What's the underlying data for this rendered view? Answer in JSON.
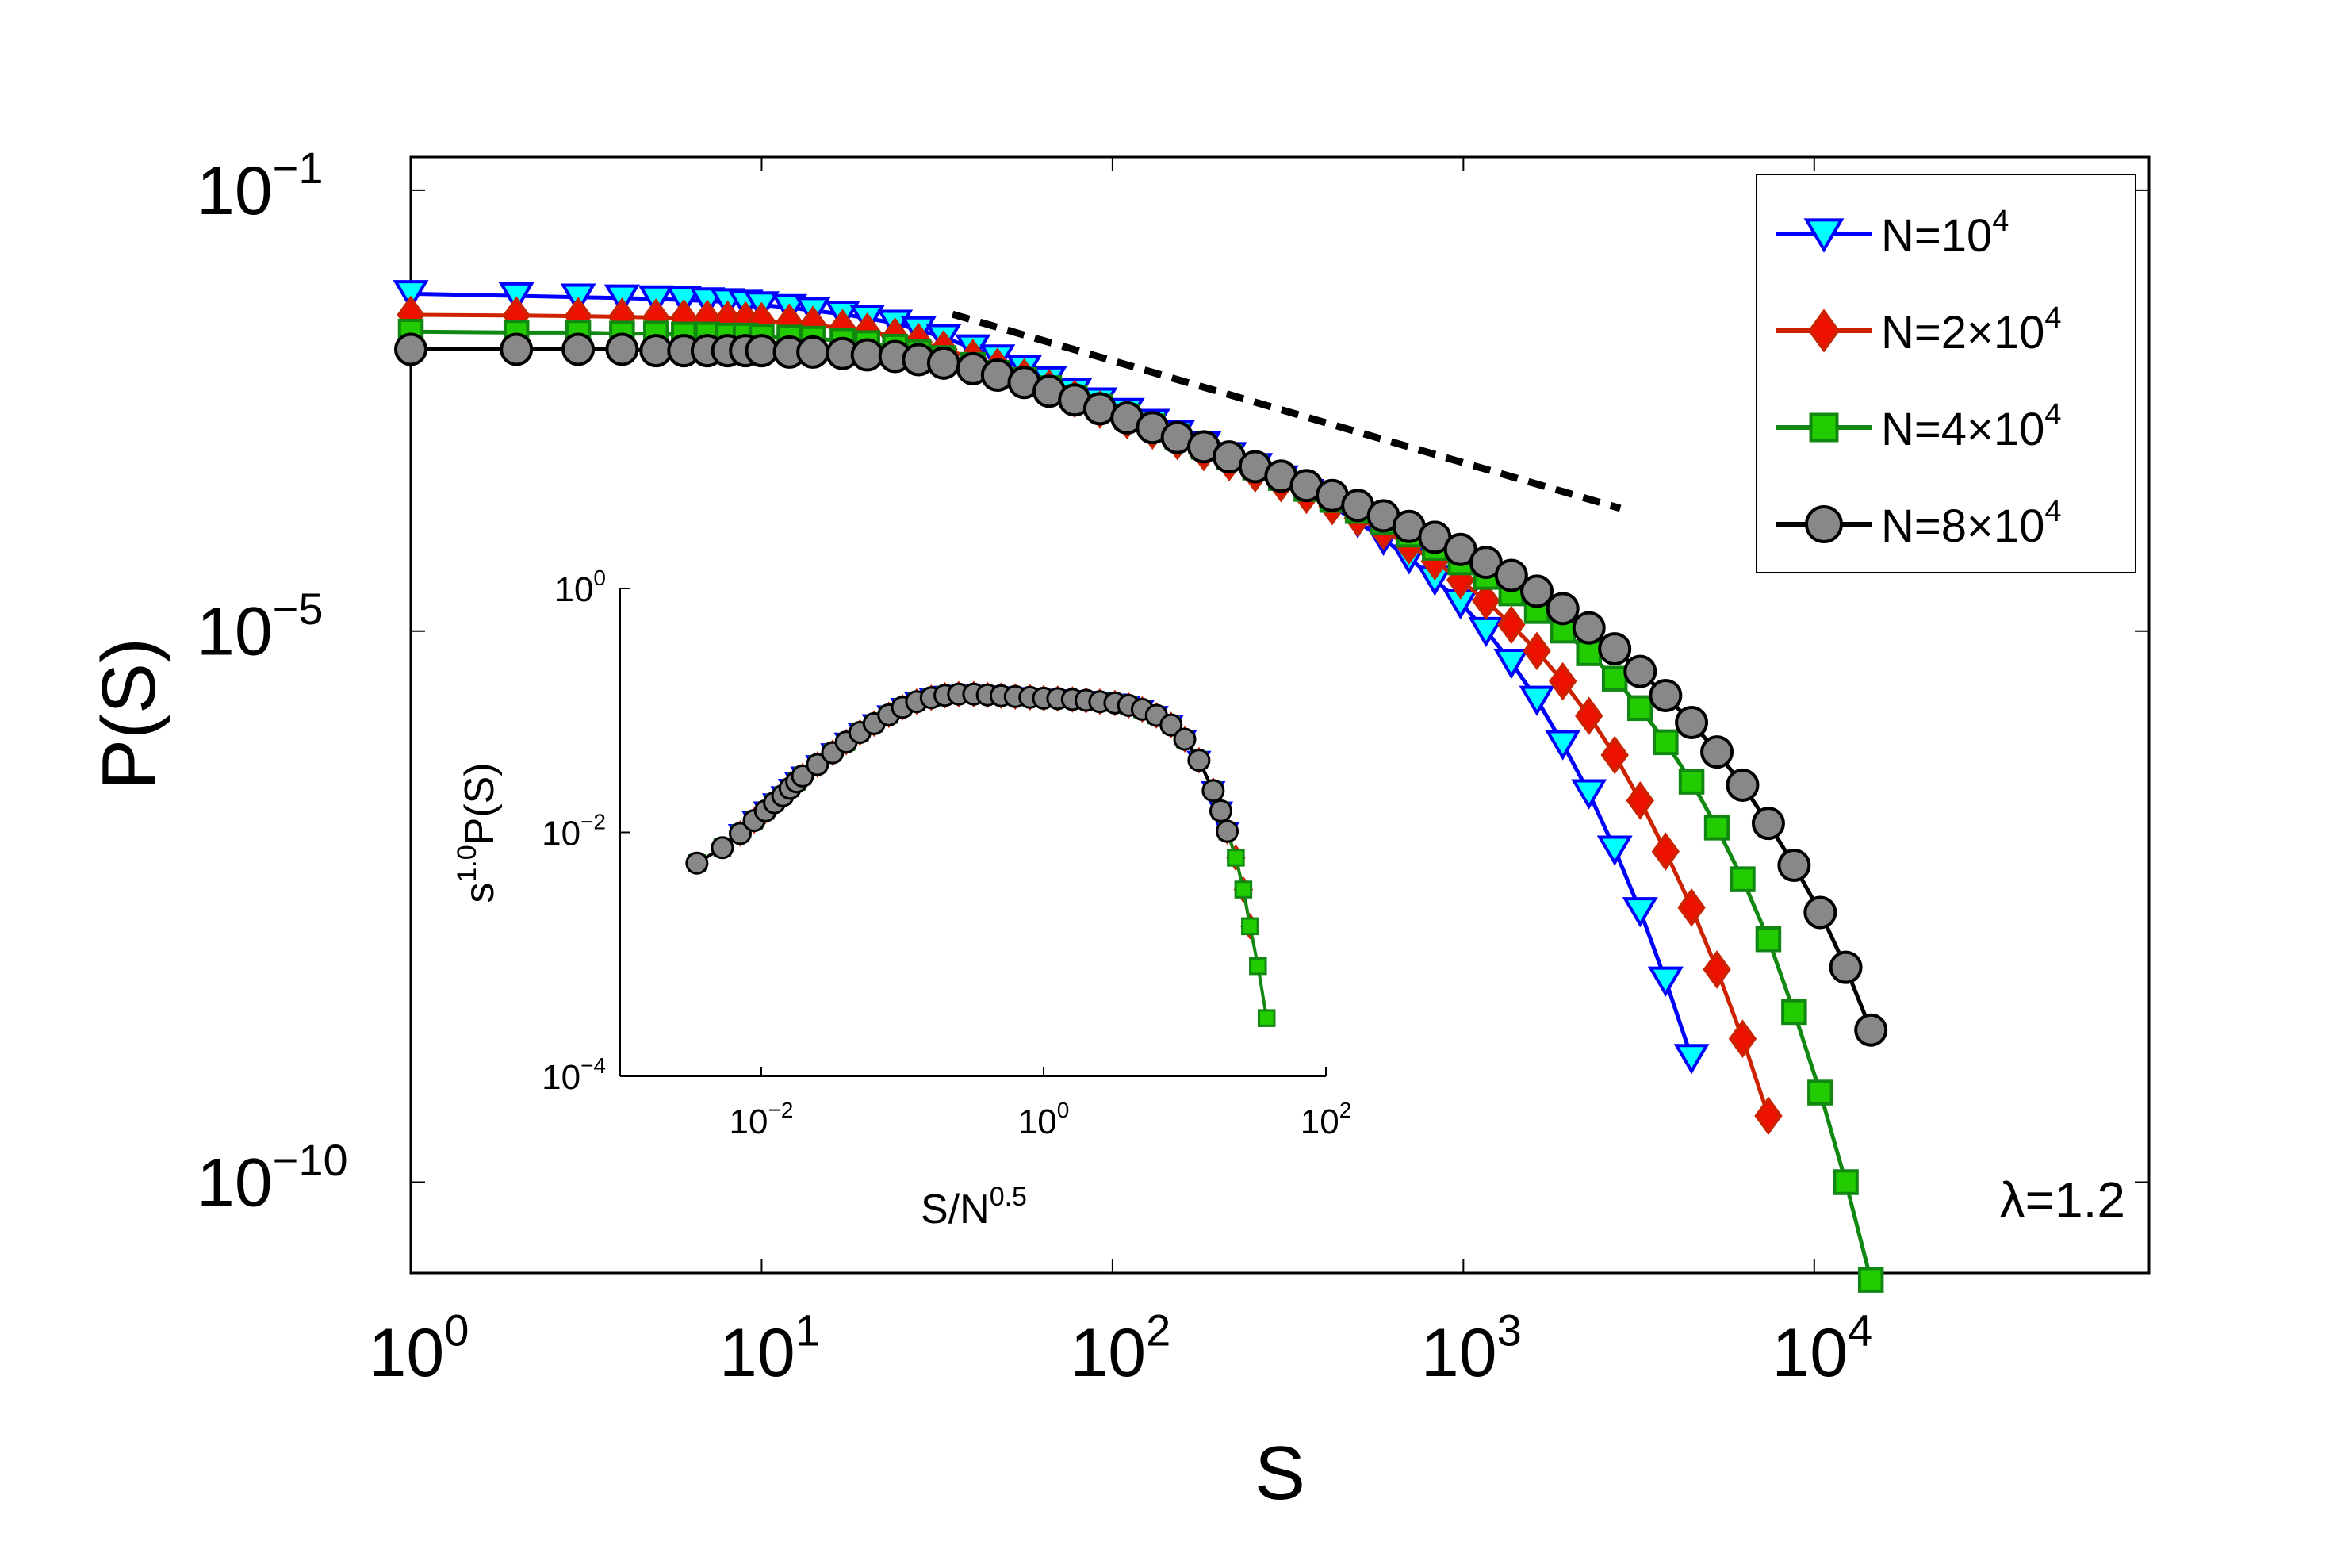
{
  "chart_data": {
    "type": "line",
    "xlabel": "S",
    "ylabel": "P(S)",
    "xscale": "log",
    "yscale": "log",
    "xlim": [
      1,
      90000
    ],
    "ylim": [
      1.5e-11,
      0.2
    ],
    "x_ticks": [
      {
        "value": 1,
        "base": "10",
        "exp": "0"
      },
      {
        "value": 10,
        "base": "10",
        "exp": "1"
      },
      {
        "value": 100,
        "base": "10",
        "exp": "2"
      },
      {
        "value": 1000,
        "base": "10",
        "exp": "3"
      },
      {
        "value": 10000,
        "base": "10",
        "exp": "4"
      }
    ],
    "y_ticks": [
      {
        "value": 0.1,
        "base": "10",
        "exp": "−1"
      },
      {
        "value": 1e-05,
        "base": "10",
        "exp": "−5"
      },
      {
        "value": 1e-10,
        "base": "10",
        "exp": "−10"
      }
    ],
    "annotation": "λ=1.2",
    "legend_location": "top-right",
    "reference_line": {
      "style": "dashed",
      "color": "#000000",
      "x": [
        35,
        2800
      ],
      "y": [
        0.0075,
        0.00013
      ]
    },
    "series": [
      {
        "name": "N=10^4",
        "label_prefix": "N=",
        "label_base": "10",
        "label_exp": "4",
        "marker": "triangle-down",
        "line_color": "#0000ff",
        "fill_color": "#00ffff",
        "x": [
          1,
          2,
          3,
          4,
          5,
          6,
          7,
          8,
          9,
          10,
          12,
          14,
          17,
          20,
          24,
          28,
          33,
          40,
          47,
          56,
          66,
          78,
          92,
          110,
          130,
          153,
          182,
          215,
          255,
          302,
          357,
          423,
          500,
          592,
          700,
          829,
          981,
          1160,
          1370,
          1620,
          1920,
          2280,
          2700,
          3190,
          3770,
          4470
        ],
        "y": [
          0.0115,
          0.011,
          0.0107,
          0.0105,
          0.0103,
          0.0101,
          0.0099,
          0.0097,
          0.0094,
          0.0091,
          0.0086,
          0.0081,
          0.0075,
          0.0069,
          0.0062,
          0.0054,
          0.0046,
          0.0037,
          0.003,
          0.0024,
          0.0019,
          0.0015,
          0.00122,
          0.00098,
          0.00078,
          0.00062,
          0.00049,
          0.00039,
          0.00031,
          0.00024,
          0.00018,
          0.000135,
          9.8e-05,
          6.8e-05,
          4.6e-05,
          2.95e-05,
          1.8e-05,
          1.01e-05,
          5.2e-06,
          2.4e-06,
          9.5e-07,
          3.4e-07,
          1.05e-07,
          2.9e-08,
          6.8e-09,
          1.35e-09
        ]
      },
      {
        "name": "N=2×10^4",
        "label_prefix": "N=2×",
        "label_base": "10",
        "label_exp": "4",
        "marker": "diamond",
        "line_color": "#cc2200",
        "fill_color": "#ee1100",
        "x": [
          1,
          2,
          3,
          4,
          5,
          6,
          7,
          8,
          9,
          10,
          12,
          14,
          17,
          20,
          24,
          28,
          33,
          40,
          47,
          56,
          66,
          78,
          92,
          110,
          130,
          153,
          182,
          215,
          255,
          302,
          357,
          423,
          500,
          592,
          700,
          829,
          981,
          1160,
          1370,
          1620,
          1920,
          2280,
          2700,
          3190,
          3770,
          4470,
          5280,
          6250,
          7400
        ],
        "y": [
          0.0074,
          0.0073,
          0.0072,
          0.0071,
          0.007,
          0.0069,
          0.0068,
          0.0067,
          0.0066,
          0.0065,
          0.0063,
          0.006,
          0.0056,
          0.0052,
          0.0047,
          0.0042,
          0.0036,
          0.003,
          0.0025,
          0.002,
          0.0016,
          0.00128,
          0.00102,
          0.00082,
          0.00066,
          0.00053,
          0.00042,
          0.00034,
          0.00027,
          0.00022,
          0.000172,
          0.000136,
          0.000106,
          8.1e-05,
          6e-05,
          4.3e-05,
          2.9e-05,
          1.88e-05,
          1.14e-05,
          6.6e-06,
          3.5e-06,
          1.7e-06,
          7.5e-07,
          2.9e-07,
          1e-07,
          3.1e-08,
          8.5e-09,
          2e-09,
          4e-10
        ]
      },
      {
        "name": "N=4×10^4",
        "label_prefix": "N=4×",
        "label_base": "10",
        "label_exp": "4",
        "marker": "square",
        "line_color": "#118811",
        "fill_color": "#22cc00",
        "x": [
          1,
          2,
          3,
          4,
          5,
          6,
          7,
          8,
          9,
          10,
          12,
          14,
          17,
          20,
          24,
          28,
          33,
          40,
          47,
          56,
          66,
          78,
          92,
          110,
          130,
          153,
          182,
          215,
          255,
          302,
          357,
          423,
          500,
          592,
          700,
          829,
          981,
          1160,
          1370,
          1620,
          1920,
          2280,
          2700,
          3190,
          3770,
          4470,
          5280,
          6250,
          7400,
          8760,
          10400,
          12300,
          14500
        ],
        "y": [
          0.0052,
          0.0051,
          0.0051,
          0.005,
          0.005,
          0.0049,
          0.0049,
          0.0048,
          0.0048,
          0.0047,
          0.0046,
          0.0045,
          0.0043,
          0.0041,
          0.0038,
          0.0034,
          0.003,
          0.0026,
          0.0022,
          0.0019,
          0.0016,
          0.0013,
          0.00108,
          0.00088,
          0.00072,
          0.00058,
          0.00047,
          0.00038,
          0.000305,
          0.000245,
          0.000195,
          0.000155,
          0.000123,
          9.7e-05,
          7.5e-05,
          5.7e-05,
          4.2e-05,
          3.1e-05,
          2.2e-05,
          1.52e-05,
          1.01e-05,
          6.3e-06,
          3.7e-06,
          2e-06,
          9.8e-07,
          4.3e-07,
          1.65e-07,
          5.6e-08,
          1.6e-08,
          3.5e-09,
          6.5e-10,
          1e-10,
          1.3e-11
        ]
      },
      {
        "name": "N=8×10^4",
        "label_prefix": "N=8×",
        "label_base": "10",
        "label_exp": "4",
        "marker": "circle",
        "line_color": "#000000",
        "fill_color": "#888888",
        "x": [
          1,
          2,
          3,
          4,
          5,
          6,
          7,
          8,
          9,
          10,
          12,
          14,
          17,
          20,
          24,
          28,
          33,
          40,
          47,
          56,
          66,
          78,
          92,
          110,
          130,
          153,
          182,
          215,
          255,
          302,
          357,
          423,
          500,
          592,
          700,
          829,
          981,
          1160,
          1370,
          1620,
          1920,
          2280,
          2700,
          3190,
          3770,
          4470,
          5280,
          6250,
          7400,
          8760,
          10400,
          12300,
          14500
        ],
        "y": [
          0.0036,
          0.0036,
          0.0036,
          0.0036,
          0.0035,
          0.0035,
          0.0035,
          0.0035,
          0.0035,
          0.0035,
          0.0034,
          0.0034,
          0.0033,
          0.0032,
          0.0031,
          0.0029,
          0.0027,
          0.0024,
          0.0021,
          0.0018,
          0.0015,
          0.00125,
          0.00104,
          0.00086,
          0.0007,
          0.00057,
          0.00047,
          0.00038,
          0.00031,
          0.000255,
          0.000209,
          0.00017,
          0.000138,
          0.000111,
          8.9e-05,
          7.1e-05,
          5.5e-05,
          4.2e-05,
          3.2e-05,
          2.3e-05,
          1.6e-05,
          1.07e-05,
          6.9e-06,
          4.3e-06,
          2.6e-06,
          1.48e-06,
          8e-07,
          4e-07,
          1.8e-07,
          7.5e-08,
          2.8e-08,
          8.9e-09,
          2.4e-09
        ]
      }
    ],
    "inset": {
      "xlabel": "S/N",
      "xlabel_exp": "0.5",
      "ylabel_base": "s",
      "ylabel_exp": "1.0",
      "ylabel_tail": "P(S)",
      "xscale": "log",
      "yscale": "log",
      "xlim": [
        0.001,
        100
      ],
      "ylim": [
        0.0001,
        1
      ],
      "x_ticks": [
        {
          "value": 0.01,
          "base": "10",
          "exp": "−2"
        },
        {
          "value": 1,
          "base": "10",
          "exp": "0"
        },
        {
          "value": 100,
          "base": "10",
          "exp": "2"
        }
      ],
      "y_ticks": [
        {
          "value": 1,
          "base": "10",
          "exp": "0"
        },
        {
          "value": 0.01,
          "base": "10",
          "exp": "−2"
        },
        {
          "value": 0.0001,
          "base": "10",
          "exp": "−4"
        }
      ],
      "collapsed_curve": {
        "x": [
          0.0035,
          0.0053,
          0.0071,
          0.0089,
          0.0107,
          0.0124,
          0.0142,
          0.016,
          0.0178,
          0.0196,
          0.025,
          0.032,
          0.04,
          0.05,
          0.063,
          0.08,
          0.1,
          0.126,
          0.16,
          0.2,
          0.25,
          0.32,
          0.4,
          0.5,
          0.63,
          0.8,
          1.0,
          1.26,
          1.6,
          2.0,
          2.5,
          3.2,
          4.0,
          5.0,
          6.3,
          8.0,
          10.0,
          12.6,
          15.9,
          18.0,
          20.0,
          23.0,
          26.0,
          29.0,
          33.0,
          38.0
        ],
        "y": [
          0.0056,
          0.0075,
          0.0098,
          0.0125,
          0.015,
          0.0175,
          0.02,
          0.023,
          0.026,
          0.029,
          0.036,
          0.045,
          0.055,
          0.066,
          0.078,
          0.092,
          0.106,
          0.118,
          0.127,
          0.133,
          0.136,
          0.136,
          0.134,
          0.132,
          0.13,
          0.128,
          0.126,
          0.125,
          0.123,
          0.121,
          0.118,
          0.115,
          0.11,
          0.102,
          0.091,
          0.076,
          0.058,
          0.039,
          0.022,
          0.015,
          0.0102,
          0.0062,
          0.0034,
          0.0017,
          0.0008,
          0.0003
        ]
      },
      "series_max_x": [
        22.0,
        29.0,
        38.0,
        22.0
      ]
    }
  }
}
